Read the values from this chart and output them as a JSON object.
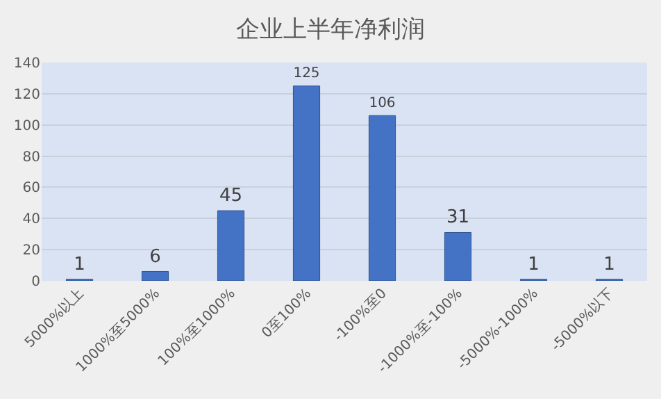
{
  "chart_data": {
    "type": "bar",
    "title": "企业上半年净利润",
    "categories": [
      "5000%以上",
      "1000%至5000%",
      "100%至1000%",
      "0至100%",
      "-100%至0",
      "-1000%至-100%",
      "-5000%-1000%",
      "-5000%以下"
    ],
    "values": [
      1,
      6,
      45,
      125,
      106,
      31,
      1,
      1
    ],
    "color": "#4472c4",
    "ylim": [
      0,
      140
    ],
    "yticks": [
      0,
      20,
      40,
      60,
      80,
      100,
      120,
      140
    ],
    "grid": "y",
    "data_labels": true
  }
}
